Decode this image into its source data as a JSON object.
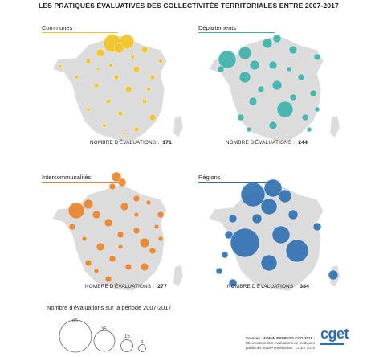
{
  "title": "LES PRATIQUES ÉVALUATIVES DES COLLECTIVITÉS TERRITORIALES ENTRE 2007-2017",
  "panels": [
    {
      "key": "communes",
      "label": "Communes",
      "color": "#f2c321",
      "count_label": "NOMBRE D'ÉVALUATIONS :",
      "count": "171"
    },
    {
      "key": "departements",
      "label": "Départements",
      "color": "#3ab1aa",
      "count_label": "NOMBRE D'ÉVALUATIONS :",
      "count": "244"
    },
    {
      "key": "intercommunalites",
      "label": "Intercommunalités",
      "color": "#e9832a",
      "count_label": "NOMBRE D'ÉVALUATIONS :",
      "count": "277"
    },
    {
      "key": "regions",
      "label": "Régions",
      "color": "#2e6fb3",
      "count_label": "NOMBRE D'ÉVALUATIONS :",
      "count": "384"
    }
  ],
  "legend": {
    "title": "Nombre d'évaluations sur la période 2007-2017",
    "values": [
      "65",
      "35",
      "15",
      "5"
    ]
  },
  "sources": {
    "line1": "Sources : ADMIN EXPRESS COG 2018 ;",
    "line2": "Observatoire des évaluations de politiques",
    "line3": "publiques 2018 • Réalisation : CGET 2019"
  },
  "logo": "cget"
}
